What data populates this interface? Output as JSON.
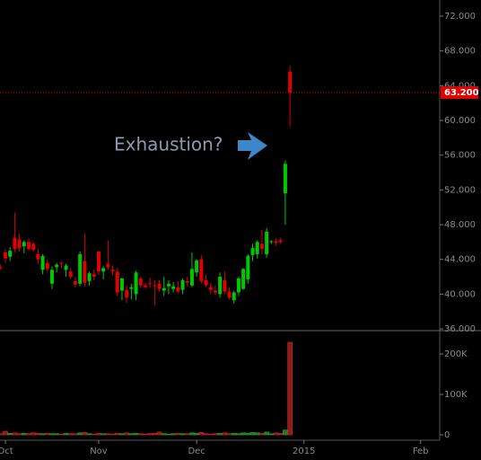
{
  "chart_data": [
    {
      "type": "candlestick",
      "up_color": "#00c800",
      "down_color": "#e00000",
      "x": [
        -1,
        0,
        1,
        2,
        3,
        4,
        5,
        6,
        7,
        8,
        9,
        10,
        11,
        12,
        13,
        14,
        15,
        16,
        17,
        18,
        19,
        20,
        21,
        22,
        23,
        24,
        25,
        26,
        27,
        28,
        29,
        30,
        31,
        32,
        33,
        34,
        35,
        36,
        37,
        38,
        39,
        40,
        41,
        42,
        43,
        44,
        45,
        46,
        47,
        48,
        49,
        50,
        51,
        52,
        53,
        54,
        55,
        56,
        57,
        58,
        59,
        60,
        61
      ],
      "open": [
        43.1,
        44.8,
        44.3,
        46.5,
        46.3,
        45.5,
        46.0,
        45.8,
        44.6,
        42.8,
        43.6,
        41.2,
        43.1,
        43.6,
        42.8,
        42.6,
        41.5,
        41.2,
        43.8,
        41.5,
        42.3,
        44.9,
        42.6,
        43.5,
        42.8,
        42.6,
        40.4,
        40.5,
        40.6,
        40.0,
        41.8,
        41.0,
        41.3,
        41.0,
        41.2,
        40.4,
        40.9,
        40.6,
        40.8,
        40.5,
        41.5,
        41.0,
        42.5,
        44.0,
        41.6,
        40.8,
        40.4,
        40.0,
        41.6,
        40.3,
        39.3,
        40.2,
        40.6,
        41.7,
        44.5,
        44.6,
        45.8,
        44.6,
        46.0,
        46.1,
        46.2,
        51.6,
        65.6
      ],
      "high": [
        43.4,
        45.2,
        45.4,
        49.4,
        47.0,
        46.2,
        46.4,
        46.0,
        45.2,
        44.6,
        44.0,
        43.2,
        43.6,
        43.8,
        43.5,
        43.0,
        42.0,
        44.9,
        47.0,
        42.6,
        42.8,
        45.0,
        43.2,
        46.2,
        43.3,
        43.0,
        41.9,
        41.0,
        41.2,
        42.7,
        42.0,
        41.3,
        41.9,
        41.6,
        41.6,
        42.0,
        41.6,
        41.4,
        41.5,
        41.8,
        42.0,
        44.8,
        44.0,
        44.5,
        42.2,
        41.3,
        41.0,
        42.5,
        42.6,
        40.8,
        40.4,
        42.0,
        43.0,
        44.6,
        45.8,
        46.2,
        47.4,
        47.6,
        46.2,
        46.4,
        46.5,
        55.4,
        66.3
      ],
      "low": [
        42.8,
        43.6,
        43.8,
        44.8,
        44.9,
        44.7,
        45.0,
        44.9,
        43.5,
        42.3,
        42.6,
        40.6,
        42.5,
        43.0,
        42.0,
        41.8,
        40.8,
        40.9,
        40.9,
        41.0,
        41.6,
        42.2,
        41.7,
        42.8,
        42.2,
        39.8,
        39.3,
        39.0,
        39.4,
        39.3,
        40.7,
        40.6,
        40.7,
        38.7,
        40.3,
        39.8,
        40.0,
        40.2,
        40.1,
        40.0,
        40.9,
        40.8,
        42.0,
        41.2,
        40.8,
        40.0,
        39.9,
        39.6,
        40.0,
        39.4,
        38.9,
        39.8,
        40.5,
        41.2,
        43.8,
        44.1,
        44.6,
        44.2,
        45.8,
        45.6,
        45.8,
        48.0,
        59.3
      ],
      "close": [
        43.0,
        44.1,
        45.0,
        45.2,
        45.3,
        46.0,
        45.2,
        45.1,
        44.0,
        44.4,
        42.9,
        42.8,
        43.4,
        43.5,
        43.3,
        42.0,
        41.1,
        44.6,
        41.3,
        42.4,
        42.0,
        42.6,
        43.0,
        43.1,
        42.6,
        40.2,
        41.8,
        39.6,
        40.8,
        42.5,
        41.0,
        40.8,
        41.2,
        40.9,
        40.6,
        40.7,
        41.2,
        40.9,
        40.3,
        41.6,
        41.3,
        42.9,
        43.9,
        41.5,
        41.0,
        40.5,
        40.2,
        42.0,
        40.3,
        39.6,
        40.2,
        41.8,
        42.9,
        44.4,
        45.3,
        46.0,
        45.2,
        47.2,
        46.1,
        45.9,
        46.0,
        55.0,
        63.2
      ],
      "xlim": [
        -1.15,
        93.1
      ],
      "xticks": [
        {
          "value": 0,
          "label": "Oct"
        },
        {
          "value": 20,
          "label": "Nov"
        },
        {
          "value": 41,
          "label": "Dec"
        },
        {
          "value": 64,
          "label": "2015"
        },
        {
          "value": 89,
          "label": "Feb"
        }
      ],
      "ylim": [
        35.8,
        73.86
      ],
      "yticks": [
        {
          "value": 36,
          "label": "36.000"
        },
        {
          "value": 40,
          "label": "40.000"
        },
        {
          "value": 44,
          "label": "44.000"
        },
        {
          "value": 48,
          "label": "48.000"
        },
        {
          "value": 52,
          "label": "52.000"
        },
        {
          "value": 56,
          "label": "56.000"
        },
        {
          "value": 60,
          "label": "60.000"
        },
        {
          "value": 64,
          "label": "64.000"
        },
        {
          "value": 68,
          "label": "68.000"
        },
        {
          "value": 72,
          "label": "72.000"
        }
      ],
      "last_price": {
        "value": 63.2,
        "label": "63.200",
        "color": "#e00000"
      },
      "annotation": "Exhaustion?"
    },
    {
      "type": "volume",
      "up_color": "#1f7a1f",
      "down_color": "#8b1c1c",
      "x": [
        -1,
        0,
        1,
        2,
        3,
        4,
        5,
        6,
        7,
        8,
        9,
        10,
        11,
        12,
        13,
        14,
        15,
        16,
        17,
        18,
        19,
        20,
        21,
        22,
        23,
        24,
        25,
        26,
        27,
        28,
        29,
        30,
        31,
        32,
        33,
        34,
        35,
        36,
        37,
        38,
        39,
        40,
        41,
        42,
        43,
        44,
        45,
        46,
        47,
        48,
        49,
        50,
        51,
        52,
        53,
        54,
        55,
        56,
        57,
        58,
        59,
        60,
        61
      ],
      "values": [
        3000,
        9000,
        4000,
        5000,
        3000,
        4000,
        3000,
        5000,
        4000,
        3000,
        4000,
        3000,
        3000,
        2000,
        4000,
        3000,
        3000,
        5000,
        6000,
        3000,
        2000,
        4000,
        3000,
        3000,
        2000,
        4000,
        3000,
        5000,
        3000,
        4000,
        3000,
        2000,
        3000,
        4000,
        7000,
        3000,
        2000,
        3000,
        4000,
        3000,
        3000,
        5000,
        4000,
        6000,
        3000,
        2000,
        3000,
        4000,
        5000,
        3000,
        4000,
        3000,
        5000,
        4000,
        6000,
        5000,
        4000,
        7000,
        3000,
        5000,
        4000,
        12000,
        229000
      ],
      "ylim": [
        -13300,
        255600
      ],
      "yticks": [
        0,
        {
          "value": 100000,
          "label": "100K"
        },
        {
          "value": 200000,
          "label": "200K"
        }
      ]
    }
  ]
}
